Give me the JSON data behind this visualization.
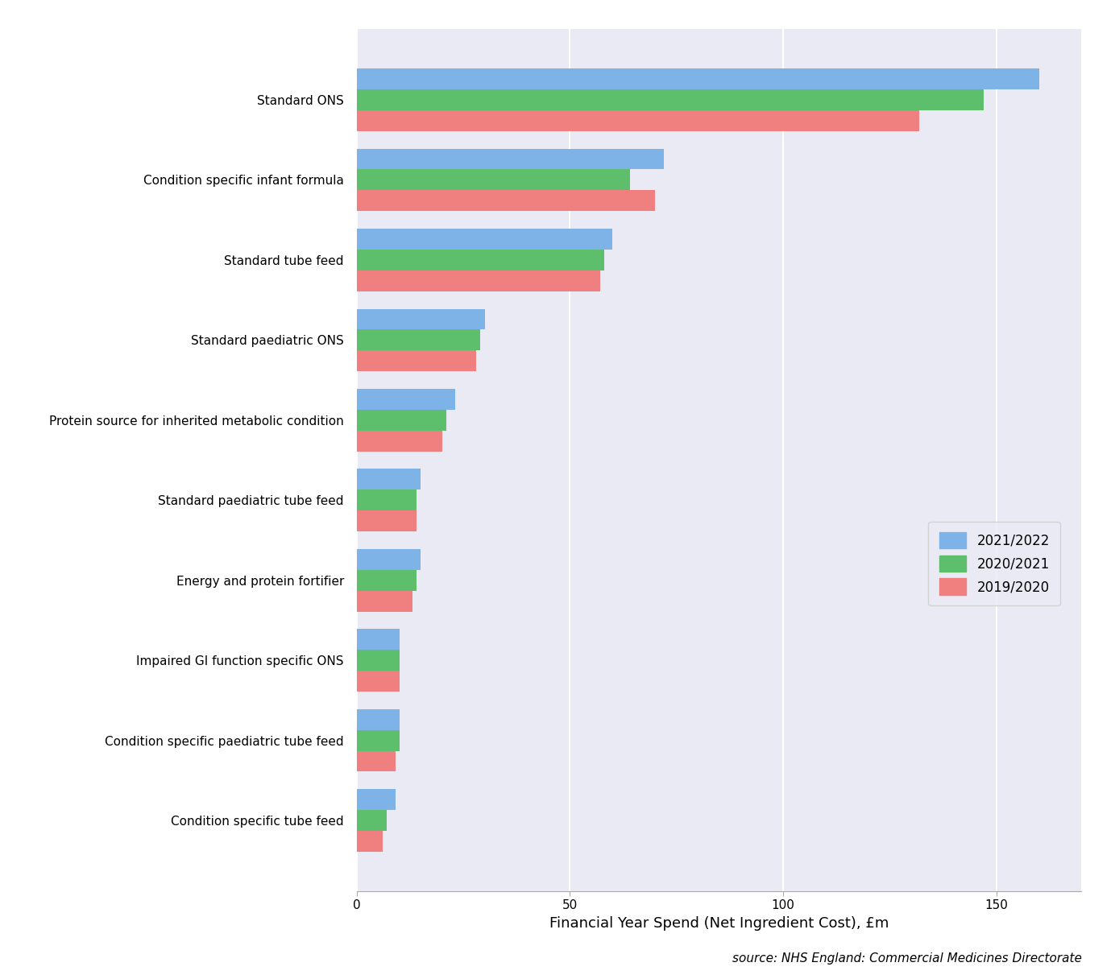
{
  "categories": [
    "Standard ONS",
    "Condition specific infant formula",
    "Standard tube feed",
    "Standard paediatric ONS",
    "Protein source for inherited metabolic condition",
    "Standard paediatric tube feed",
    "Energy and protein fortifier",
    "Impaired GI function specific ONS",
    "Condition specific paediatric tube feed",
    "Condition specific tube feed"
  ],
  "series": {
    "2021/2022": [
      160,
      72,
      60,
      30,
      23,
      15,
      15,
      10,
      10,
      9
    ],
    "2020/2021": [
      147,
      64,
      58,
      29,
      21,
      14,
      14,
      10,
      10,
      7
    ],
    "2019/2020": [
      132,
      70,
      57,
      28,
      20,
      14,
      13,
      10,
      9,
      6
    ]
  },
  "colors": {
    "2021/2022": "#7EB3E8",
    "2020/2021": "#5DBF6B",
    "2019/2020": "#F08080"
  },
  "xlabel": "Financial Year Spend (Net Ingredient Cost), £m",
  "source": "source: NHS England: Commercial Medicines Directorate",
  "xlim": [
    0,
    170
  ],
  "xticks": [
    0,
    50,
    100,
    150
  ],
  "background_color": "#F0F0F0",
  "plot_bg_color": "#EAEAF4",
  "bar_height": 0.26,
  "xlabel_fontsize": 13,
  "source_fontsize": 11,
  "tick_fontsize": 11,
  "ytick_fontsize": 11,
  "legend_fontsize": 12
}
